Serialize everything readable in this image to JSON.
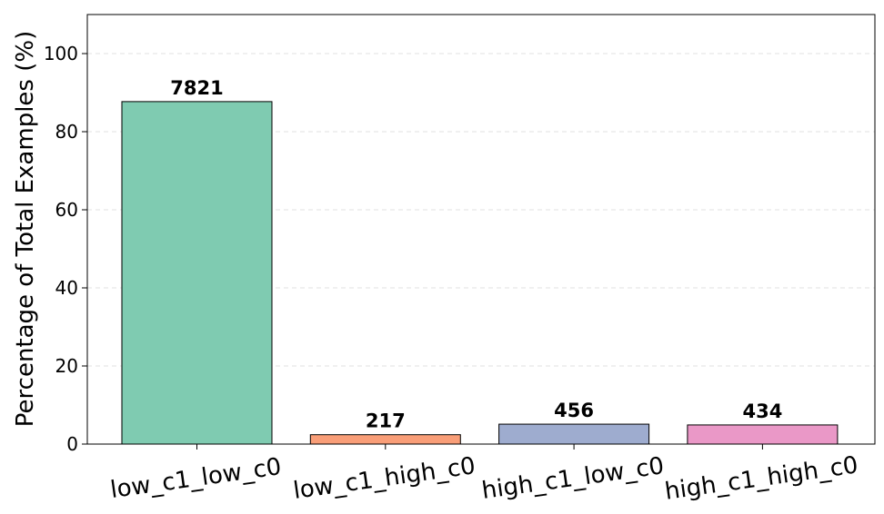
{
  "chart_data": {
    "type": "bar",
    "title": "",
    "xlabel": "",
    "ylabel": "Percentage of Total Examples (%)",
    "ylim": [
      0,
      110
    ],
    "yticks": [
      0,
      20,
      40,
      60,
      80,
      100
    ],
    "grid": true,
    "categories": [
      "low_c1_low_c0",
      "low_c1_high_c0",
      "high_c1_low_c0",
      "high_c1_high_c0"
    ],
    "values": [
      87.7,
      2.4,
      5.1,
      4.9
    ],
    "data_labels": [
      "7821",
      "217",
      "456",
      "434"
    ],
    "colors": [
      "#7fcbb1",
      "#f99e78",
      "#9eaccf",
      "#ea98c7"
    ]
  }
}
